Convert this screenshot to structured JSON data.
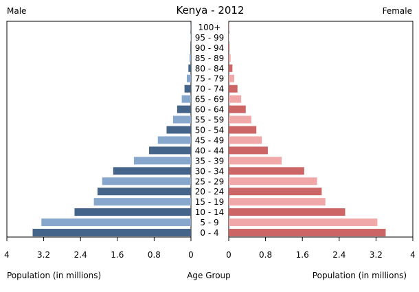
{
  "chart_data": {
    "type": "bar",
    "title": "Kenya - 2012",
    "left_label": "Male",
    "right_label": "Female",
    "center_axis_label": "Age Group",
    "left_axis_label": "Population (in millions)",
    "right_axis_label": "Population (in millions)",
    "xlim": [
      0,
      4
    ],
    "tick_labels_left": [
      "4",
      "3.2",
      "2.4",
      "1.6",
      "0.8",
      "0"
    ],
    "tick_labels_right": [
      "0",
      "0.8",
      "1.6",
      "2.4",
      "3.2",
      "4"
    ],
    "tick_values": [
      0,
      0.8,
      1.6,
      2.4,
      3.2,
      4
    ],
    "categories": [
      "100+",
      "95 - 99",
      "90 - 94",
      "85 - 89",
      "80 - 84",
      "75 - 79",
      "70 - 74",
      "65 - 69",
      "60 - 64",
      "55 - 59",
      "50 - 54",
      "45 - 49",
      "40 - 44",
      "35 - 39",
      "30 - 34",
      "25 - 29",
      "20 - 24",
      "15 - 19",
      "10 - 14",
      "5 - 9",
      "0 - 4"
    ],
    "series": [
      {
        "name": "Male",
        "values": [
          0.003,
          0.006,
          0.013,
          0.03,
          0.055,
          0.09,
          0.14,
          0.2,
          0.3,
          0.39,
          0.53,
          0.72,
          0.91,
          1.24,
          1.69,
          1.93,
          2.03,
          2.11,
          2.53,
          3.25,
          3.44
        ],
        "colors": [
          "#45648a",
          "#87a7cc"
        ]
      },
      {
        "name": "Female",
        "values": [
          0.004,
          0.009,
          0.017,
          0.04,
          0.08,
          0.12,
          0.19,
          0.27,
          0.37,
          0.49,
          0.6,
          0.72,
          0.85,
          1.15,
          1.64,
          1.92,
          2.02,
          2.1,
          2.53,
          3.23,
          3.41
        ],
        "colors": [
          "#cc6666",
          "#f0a8a8"
        ]
      }
    ]
  }
}
